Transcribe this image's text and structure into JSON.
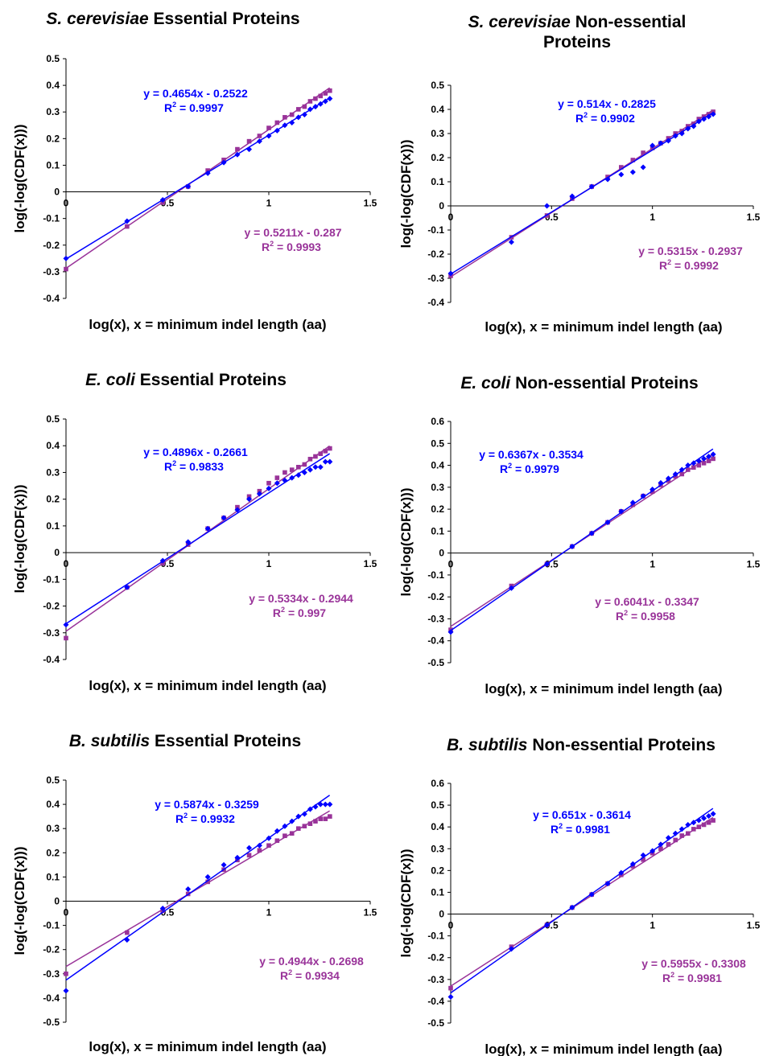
{
  "colors": {
    "blue": "#0000ff",
    "purple": "#993399"
  },
  "chart_data": [
    {
      "type": "scatter",
      "title_species": "S. cerevisiae",
      "title_rest": "Essential Proteins",
      "xlabel": "log(x), x = minimum indel length (aa)",
      "ylabel": "log(-log(CDF(x)))",
      "xlim": [
        0,
        1.5
      ],
      "ylim": [
        -0.4,
        0.5
      ],
      "xticks": [
        0,
        0.5,
        1,
        1.5
      ],
      "yticks": [
        -0.4,
        -0.3,
        -0.2,
        -0.1,
        0,
        0.1,
        0.2,
        0.3,
        0.4,
        0.5
      ],
      "series": [
        {
          "color": "blue",
          "marker": "diamond",
          "equation": "y = 0.4654x - 0.2522",
          "r2": "= 0.9997",
          "x": [
            0,
            0.301,
            0.477,
            0.602,
            0.699,
            0.778,
            0.845,
            0.903,
            0.954,
            1.0,
            1.041,
            1.079,
            1.114,
            1.146,
            1.176,
            1.204,
            1.23,
            1.255,
            1.279,
            1.301
          ],
          "y": [
            -0.25,
            -0.11,
            -0.03,
            0.02,
            0.07,
            0.11,
            0.14,
            0.16,
            0.19,
            0.21,
            0.23,
            0.25,
            0.26,
            0.28,
            0.29,
            0.31,
            0.32,
            0.33,
            0.34,
            0.35
          ]
        },
        {
          "color": "purple",
          "marker": "square",
          "equation": "y = 0.5211x - 0.287",
          "r2": "= 0.9993",
          "x": [
            0,
            0.301,
            0.477,
            0.602,
            0.699,
            0.778,
            0.845,
            0.903,
            0.954,
            1.0,
            1.041,
            1.079,
            1.114,
            1.146,
            1.176,
            1.204,
            1.23,
            1.255,
            1.279,
            1.301
          ],
          "y": [
            -0.29,
            -0.13,
            -0.04,
            0.02,
            0.08,
            0.12,
            0.16,
            0.19,
            0.21,
            0.24,
            0.26,
            0.28,
            0.29,
            0.31,
            0.32,
            0.34,
            0.35,
            0.36,
            0.37,
            0.38
          ]
        }
      ]
    },
    {
      "type": "scatter",
      "title_species": "S. cerevisiae",
      "title_rest": "Non-essential Proteins",
      "xlabel": "log(x), x = minimum indel length (aa)",
      "ylabel": "log(-log(CDF(x)))",
      "xlim": [
        0,
        1.5
      ],
      "ylim": [
        -0.4,
        0.5
      ],
      "xticks": [
        0,
        0.5,
        1,
        1.5
      ],
      "yticks": [
        -0.4,
        -0.3,
        -0.2,
        -0.1,
        0,
        0.1,
        0.2,
        0.3,
        0.4,
        0.5
      ],
      "series": [
        {
          "color": "blue",
          "marker": "diamond",
          "equation": "y = 0.514x - 0.2825",
          "r2": "= 0.9902",
          "x": [
            0,
            0.301,
            0.477,
            0.602,
            0.699,
            0.778,
            0.845,
            0.903,
            0.954,
            1.0,
            1.041,
            1.079,
            1.114,
            1.146,
            1.176,
            1.204,
            1.23,
            1.255,
            1.279,
            1.301
          ],
          "y": [
            -0.28,
            -0.15,
            0.0,
            0.04,
            0.08,
            0.11,
            0.13,
            0.14,
            0.16,
            0.25,
            0.26,
            0.27,
            0.29,
            0.3,
            0.32,
            0.33,
            0.35,
            0.36,
            0.37,
            0.38
          ]
        },
        {
          "color": "purple",
          "marker": "square",
          "equation": "y = 0.5315x - 0.2937",
          "r2": "= 0.9992",
          "x": [
            0,
            0.301,
            0.477,
            0.602,
            0.699,
            0.778,
            0.845,
            0.903,
            0.954,
            1.0,
            1.041,
            1.079,
            1.114,
            1.146,
            1.176,
            1.204,
            1.23,
            1.255,
            1.279,
            1.301
          ],
          "y": [
            -0.29,
            -0.13,
            -0.04,
            0.03,
            0.08,
            0.12,
            0.16,
            0.19,
            0.22,
            0.24,
            0.26,
            0.28,
            0.3,
            0.31,
            0.33,
            0.34,
            0.36,
            0.37,
            0.38,
            0.39
          ]
        }
      ]
    },
    {
      "type": "scatter",
      "title_species": "E. coli",
      "title_rest": "Essential Proteins",
      "xlabel": "log(x), x = minimum indel length (aa)",
      "ylabel": "log(-log(CDF(x)))",
      "xlim": [
        0,
        1.5
      ],
      "ylim": [
        -0.4,
        0.5
      ],
      "xticks": [
        0,
        0.5,
        1,
        1.5
      ],
      "yticks": [
        -0.4,
        -0.3,
        -0.2,
        -0.1,
        0,
        0.1,
        0.2,
        0.3,
        0.4,
        0.5
      ],
      "series": [
        {
          "color": "blue",
          "marker": "diamond",
          "equation": "y = 0.4896x - 0.2661",
          "r2": "= 0.9833",
          "x": [
            0,
            0.301,
            0.477,
            0.602,
            0.699,
            0.778,
            0.845,
            0.903,
            0.954,
            1.0,
            1.041,
            1.079,
            1.114,
            1.146,
            1.176,
            1.204,
            1.23,
            1.255,
            1.279,
            1.301
          ],
          "y": [
            -0.27,
            -0.13,
            -0.03,
            0.04,
            0.09,
            0.13,
            0.16,
            0.2,
            0.22,
            0.24,
            0.26,
            0.27,
            0.28,
            0.29,
            0.3,
            0.31,
            0.32,
            0.32,
            0.34,
            0.34
          ]
        },
        {
          "color": "purple",
          "marker": "square",
          "equation": "y = 0.5334x - 0.2944",
          "r2": "= 0.997",
          "x": [
            0,
            0.301,
            0.477,
            0.602,
            0.699,
            0.778,
            0.845,
            0.903,
            0.954,
            1.0,
            1.041,
            1.079,
            1.114,
            1.146,
            1.176,
            1.204,
            1.23,
            1.255,
            1.279,
            1.301
          ],
          "y": [
            -0.32,
            -0.13,
            -0.04,
            0.03,
            0.09,
            0.13,
            0.17,
            0.21,
            0.23,
            0.26,
            0.28,
            0.3,
            0.31,
            0.32,
            0.33,
            0.35,
            0.36,
            0.37,
            0.38,
            0.39
          ]
        }
      ]
    },
    {
      "type": "scatter",
      "title_species": "E. coli",
      "title_rest": "Non-essential Proteins",
      "xlabel": "log(x), x = minimum indel length (aa)",
      "ylabel": "log(-log(CDF(x)))",
      "xlim": [
        0,
        1.5
      ],
      "ylim": [
        -0.5,
        0.6
      ],
      "xticks": [
        0,
        0.5,
        1,
        1.5
      ],
      "yticks": [
        -0.5,
        -0.4,
        -0.3,
        -0.2,
        -0.1,
        0,
        0.1,
        0.2,
        0.3,
        0.4,
        0.5,
        0.6
      ],
      "series": [
        {
          "color": "blue",
          "marker": "diamond",
          "equation": "y = 0.6367x - 0.3534",
          "r2": "= 0.9979",
          "x": [
            0,
            0.301,
            0.477,
            0.602,
            0.699,
            0.778,
            0.845,
            0.903,
            0.954,
            1.0,
            1.041,
            1.079,
            1.114,
            1.146,
            1.176,
            1.204,
            1.23,
            1.255,
            1.279,
            1.301
          ],
          "y": [
            -0.36,
            -0.16,
            -0.05,
            0.03,
            0.09,
            0.14,
            0.19,
            0.23,
            0.26,
            0.29,
            0.32,
            0.34,
            0.36,
            0.38,
            0.4,
            0.41,
            0.42,
            0.43,
            0.44,
            0.45
          ]
        },
        {
          "color": "purple",
          "marker": "square",
          "equation": "y = 0.6041x - 0.3347",
          "r2": "= 0.9958",
          "x": [
            0,
            0.301,
            0.477,
            0.602,
            0.699,
            0.778,
            0.845,
            0.903,
            0.954,
            1.0,
            1.041,
            1.079,
            1.114,
            1.146,
            1.176,
            1.204,
            1.23,
            1.255,
            1.279,
            1.301
          ],
          "y": [
            -0.35,
            -0.15,
            -0.05,
            0.03,
            0.09,
            0.14,
            0.19,
            0.22,
            0.26,
            0.28,
            0.31,
            0.33,
            0.35,
            0.36,
            0.38,
            0.39,
            0.4,
            0.41,
            0.42,
            0.43
          ]
        }
      ]
    },
    {
      "type": "scatter",
      "title_species": "B. subtilis",
      "title_rest": "Essential Proteins",
      "xlabel": "log(x), x = minimum indel length (aa)",
      "ylabel": "log(-log(CDF(x)))",
      "xlim": [
        0,
        1.5
      ],
      "ylim": [
        -0.5,
        0.5
      ],
      "xticks": [
        0,
        0.5,
        1,
        1.5
      ],
      "yticks": [
        -0.5,
        -0.4,
        -0.3,
        -0.2,
        -0.1,
        0,
        0.1,
        0.2,
        0.3,
        0.4,
        0.5
      ],
      "series": [
        {
          "color": "blue",
          "marker": "diamond",
          "equation": "y = 0.5874x - 0.3259",
          "r2": "= 0.9932",
          "x": [
            0,
            0.301,
            0.477,
            0.602,
            0.699,
            0.778,
            0.845,
            0.903,
            0.954,
            1.0,
            1.041,
            1.079,
            1.114,
            1.146,
            1.176,
            1.204,
            1.23,
            1.255,
            1.279,
            1.301
          ],
          "y": [
            -0.37,
            -0.16,
            -0.03,
            0.05,
            0.1,
            0.15,
            0.18,
            0.22,
            0.23,
            0.26,
            0.29,
            0.31,
            0.33,
            0.35,
            0.36,
            0.38,
            0.39,
            0.4,
            0.4,
            0.4
          ]
        },
        {
          "color": "purple",
          "marker": "square",
          "equation": "y = 0.4944x - 0.2698",
          "r2": "= 0.9934",
          "x": [
            0,
            0.301,
            0.477,
            0.602,
            0.699,
            0.778,
            0.845,
            0.903,
            0.954,
            1.0,
            1.041,
            1.079,
            1.114,
            1.146,
            1.176,
            1.204,
            1.23,
            1.255,
            1.279,
            1.301
          ],
          "y": [
            -0.3,
            -0.13,
            -0.04,
            0.03,
            0.08,
            0.13,
            0.17,
            0.19,
            0.21,
            0.23,
            0.25,
            0.27,
            0.28,
            0.3,
            0.31,
            0.32,
            0.33,
            0.34,
            0.34,
            0.35
          ]
        }
      ]
    },
    {
      "type": "scatter",
      "title_species": "B. subtilis",
      "title_rest": "Non-essential Proteins",
      "xlabel": "log(x), x = minimum indel length (aa)",
      "ylabel": "log(-log(CDF(x)))",
      "xlim": [
        0,
        1.5
      ],
      "ylim": [
        -0.5,
        0.6
      ],
      "xticks": [
        0,
        0.5,
        1,
        1.5
      ],
      "yticks": [
        -0.5,
        -0.4,
        -0.3,
        -0.2,
        -0.1,
        0,
        0.1,
        0.2,
        0.3,
        0.4,
        0.5,
        0.6
      ],
      "series": [
        {
          "color": "blue",
          "marker": "diamond",
          "equation": "y = 0.651x - 0.3614",
          "r2": "= 0.9981",
          "x": [
            0,
            0.301,
            0.477,
            0.602,
            0.699,
            0.778,
            0.845,
            0.903,
            0.954,
            1.0,
            1.041,
            1.079,
            1.114,
            1.146,
            1.176,
            1.204,
            1.23,
            1.255,
            1.279,
            1.301
          ],
          "y": [
            -0.38,
            -0.16,
            -0.05,
            0.03,
            0.09,
            0.14,
            0.19,
            0.23,
            0.27,
            0.29,
            0.32,
            0.35,
            0.37,
            0.39,
            0.41,
            0.42,
            0.43,
            0.44,
            0.45,
            0.46
          ]
        },
        {
          "color": "purple",
          "marker": "square",
          "equation": "y = 0.5955x - 0.3308",
          "r2": "= 0.9981",
          "x": [
            0,
            0.301,
            0.477,
            0.602,
            0.699,
            0.778,
            0.845,
            0.903,
            0.954,
            1.0,
            1.041,
            1.079,
            1.114,
            1.146,
            1.176,
            1.204,
            1.23,
            1.255,
            1.279,
            1.301
          ],
          "y": [
            -0.34,
            -0.15,
            -0.05,
            0.03,
            0.09,
            0.14,
            0.18,
            0.22,
            0.25,
            0.28,
            0.3,
            0.32,
            0.34,
            0.36,
            0.37,
            0.39,
            0.4,
            0.41,
            0.42,
            0.43
          ]
        }
      ]
    }
  ]
}
